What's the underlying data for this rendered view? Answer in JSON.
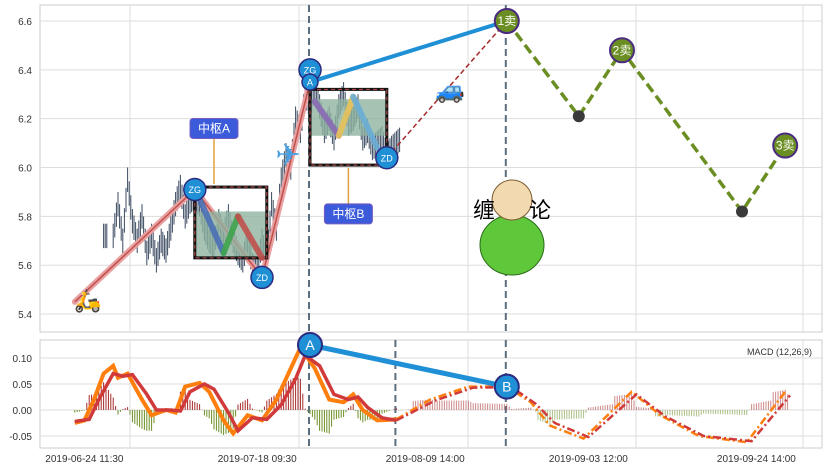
{
  "chart_data": [
    {
      "type": "line",
      "panel": "price",
      "ylim": [
        5.35,
        6.65
      ],
      "yticks": [
        5.4,
        5.6,
        5.8,
        6.0,
        6.2,
        6.4,
        6.6
      ],
      "grid": true,
      "price": [
        [
          7,
          5.72
        ],
        [
          9,
          5.85
        ],
        [
          10,
          5.7
        ],
        [
          11,
          5.95
        ],
        [
          12,
          5.78
        ],
        [
          13,
          5.7
        ],
        [
          14,
          5.8
        ],
        [
          15,
          5.65
        ],
        [
          16,
          5.72
        ],
        [
          17,
          5.62
        ],
        [
          18,
          5.7
        ],
        [
          19,
          5.66
        ],
        [
          20,
          5.75
        ],
        [
          21,
          5.85
        ],
        [
          22,
          5.92
        ],
        [
          23,
          5.8
        ],
        [
          24,
          5.86
        ],
        [
          25,
          5.88
        ],
        [
          26,
          5.85
        ],
        [
          27,
          5.75
        ],
        [
          28,
          5.7
        ],
        [
          29,
          5.68
        ],
        [
          30,
          5.78
        ],
        [
          31,
          5.72
        ],
        [
          32,
          5.8
        ],
        [
          33,
          5.7
        ],
        [
          34,
          5.65
        ],
        [
          35,
          5.62
        ],
        [
          36,
          5.7
        ],
        [
          37,
          5.6
        ],
        [
          38,
          5.58
        ],
        [
          39,
          5.7
        ],
        [
          40,
          5.62
        ],
        [
          41,
          5.85
        ],
        [
          42,
          5.75
        ],
        [
          43,
          5.95
        ],
        [
          44,
          6.05
        ],
        [
          45,
          6.0
        ],
        [
          46,
          6.2
        ],
        [
          47,
          6.15
        ],
        [
          48,
          6.3
        ],
        [
          49,
          6.25
        ],
        [
          50,
          6.33
        ],
        [
          51,
          6.25
        ],
        [
          52,
          6.15
        ],
        [
          53,
          6.2
        ],
        [
          54,
          6.12
        ],
        [
          55,
          6.25
        ],
        [
          56,
          6.3
        ],
        [
          57,
          6.18
        ],
        [
          58,
          6.2
        ],
        [
          59,
          6.25
        ],
        [
          60,
          6.12
        ],
        [
          61,
          6.15
        ],
        [
          62,
          6.08
        ],
        [
          63,
          6.1
        ],
        [
          64,
          6.12
        ],
        [
          65,
          6.05
        ],
        [
          66,
          6.08
        ],
        [
          67,
          6.1
        ],
        [
          68,
          6.12
        ]
      ],
      "strokes": [
        {
          "from": [
            1,
            5.45
          ],
          "to": [
            26,
            5.91
          ],
          "color": "#c0504d"
        },
        {
          "from": [
            26,
            5.91
          ],
          "to": [
            40,
            5.55
          ],
          "color": "#c0504d"
        },
        {
          "from": [
            40,
            5.55
          ],
          "to": [
            50,
            6.35
          ],
          "color": "#c0504d"
        }
      ],
      "pivots": [
        {
          "label": "中枢A",
          "zg": 5.92,
          "zd": 5.63,
          "shade": [
            5.63,
            5.82
          ],
          "from": 26,
          "to": 41,
          "tag": [
            30,
            6.16
          ],
          "segs": [
            {
              "a": [
                27,
                5.87
              ],
              "b": [
                32,
                5.65
              ],
              "c": "#4a6fb5"
            },
            {
              "a": [
                32,
                5.65
              ],
              "b": [
                35,
                5.8
              ],
              "c": "#3fa34d"
            },
            {
              "a": [
                35,
                5.8
              ],
              "b": [
                40,
                5.63
              ],
              "c": "#c0504d"
            }
          ]
        },
        {
          "label": "中枢B",
          "zg": 6.32,
          "zd": 6.01,
          "shade": [
            6.13,
            6.28
          ],
          "from": 50,
          "to": 66,
          "tag": [
            58,
            5.81
          ],
          "segs": [
            {
              "a": [
                51,
                6.27
              ],
              "b": [
                56,
                6.13
              ],
              "c": "#8a6bb5"
            },
            {
              "a": [
                56,
                6.13
              ],
              "b": [
                59,
                6.29
              ],
              "c": "#e8c25a"
            },
            {
              "a": [
                59,
                6.29
              ],
              "b": [
                64,
                6.08
              ],
              "c": "#6aaed6"
            }
          ]
        }
      ],
      "markers": [
        {
          "label": "ZG",
          "i": 26,
          "p": 5.91
        },
        {
          "label": "ZD",
          "i": 40,
          "p": 5.55
        },
        {
          "label": "ZG",
          "i": 50,
          "p": 6.4
        },
        {
          "label": "A",
          "i": 50,
          "p": 6.35
        },
        {
          "label": "ZD",
          "i": 66,
          "p": 6.04
        }
      ],
      "projection": [
        [
          66,
          6.04
        ],
        [
          91,
          6.6
        ]
      ],
      "trend_line": [
        [
          50,
          6.35
        ],
        [
          91,
          6.6
        ]
      ],
      "forecast": [
        [
          91,
          6.6
        ],
        [
          106,
          6.21
        ],
        [
          115,
          6.48
        ],
        [
          140,
          5.82
        ],
        [
          149,
          6.09
        ]
      ],
      "sell_points": [
        {
          "label": "1卖",
          "i": 91,
          "p": 6.6
        },
        {
          "label": "2卖",
          "i": 115,
          "p": 6.48
        },
        {
          "label": "3卖",
          "i": 149,
          "p": 6.09
        }
      ],
      "buy_dots": [
        [
          106,
          6.21
        ],
        [
          140,
          5.82
        ]
      ],
      "icons": [
        "scooter-icon",
        "airplane-icon",
        "car-icon",
        "monk-icon"
      ],
      "monk_text": [
        "缠",
        "论"
      ],
      "vlines": [
        50,
        91
      ]
    },
    {
      "type": "line",
      "panel": "macd",
      "title": "MACD (12,26,9)",
      "ylim": [
        -0.07,
        0.14
      ],
      "yticks": [
        -0.05,
        0.0,
        0.05,
        0.1
      ],
      "ytick_labels": [
        "-0.05",
        "0.00",
        "0.05",
        "0.10"
      ],
      "dif": [
        [
          1,
          -0.025
        ],
        [
          3,
          -0.02
        ],
        [
          5,
          0.02
        ],
        [
          7,
          0.07
        ],
        [
          9,
          0.085
        ],
        [
          10,
          0.062
        ],
        [
          12,
          0.07
        ],
        [
          15,
          0.02
        ],
        [
          17,
          -0.01
        ],
        [
          20,
          0.0
        ],
        [
          22,
          -0.005
        ],
        [
          24,
          0.045
        ],
        [
          27,
          0.052
        ],
        [
          29,
          0.035
        ],
        [
          32,
          -0.02
        ],
        [
          34,
          -0.045
        ],
        [
          37,
          -0.01
        ],
        [
          40,
          -0.02
        ],
        [
          43,
          0.02
        ],
        [
          46,
          0.08
        ],
        [
          48,
          0.12
        ],
        [
          51,
          0.08
        ],
        [
          54,
          0.02
        ],
        [
          57,
          0.015
        ],
        [
          59,
          0.03
        ],
        [
          61,
          0.0
        ],
        [
          64,
          -0.02
        ],
        [
          68,
          -0.018
        ]
      ],
      "dea": [
        [
          1,
          -0.022
        ],
        [
          4,
          -0.018
        ],
        [
          6,
          0.02
        ],
        [
          9,
          0.07
        ],
        [
          11,
          0.065
        ],
        [
          13,
          0.068
        ],
        [
          16,
          0.03
        ],
        [
          18,
          0.0
        ],
        [
          21,
          0.0
        ],
        [
          23,
          -0.002
        ],
        [
          25,
          0.035
        ],
        [
          28,
          0.05
        ],
        [
          30,
          0.04
        ],
        [
          33,
          -0.005
        ],
        [
          35,
          -0.04
        ],
        [
          38,
          -0.015
        ],
        [
          41,
          -0.018
        ],
        [
          44,
          0.01
        ],
        [
          47,
          0.06
        ],
        [
          49,
          0.105
        ],
        [
          52,
          0.085
        ],
        [
          55,
          0.03
        ],
        [
          58,
          0.02
        ],
        [
          60,
          0.025
        ],
        [
          62,
          0.005
        ],
        [
          65,
          -0.015
        ],
        [
          68,
          -0.02
        ]
      ],
      "dif_forecast": [
        [
          68,
          -0.018
        ],
        [
          75,
          0.02
        ],
        [
          83,
          0.045
        ],
        [
          91,
          0.045
        ],
        [
          96,
          0.015
        ],
        [
          100,
          -0.03
        ],
        [
          107,
          -0.055
        ],
        [
          117,
          0.035
        ],
        [
          123,
          -0.01
        ],
        [
          131,
          -0.05
        ],
        [
          141,
          -0.062
        ],
        [
          149,
          0.035
        ]
      ],
      "dea_forecast": [
        [
          68,
          -0.02
        ],
        [
          76,
          0.018
        ],
        [
          84,
          0.043
        ],
        [
          92,
          0.044
        ],
        [
          97,
          0.012
        ],
        [
          101,
          -0.025
        ],
        [
          108,
          -0.052
        ],
        [
          118,
          0.03
        ],
        [
          124,
          -0.012
        ],
        [
          132,
          -0.05
        ],
        [
          142,
          -0.06
        ],
        [
          150,
          0.028
        ]
      ],
      "divergence": [
        {
          "label": "A",
          "i": 50,
          "v": 0.125
        },
        {
          "label": "B",
          "i": 91,
          "v": 0.045
        }
      ],
      "vlines": [
        50,
        68,
        91
      ]
    }
  ],
  "xaxis": {
    "ticks": [
      {
        "i": 3,
        "label": "2019-06-24 11:30"
      },
      {
        "i": 39,
        "label": "2019-07-18 09:30"
      },
      {
        "i": 74,
        "label": "2019-08-09 14:00"
      },
      {
        "i": 108,
        "label": "2019-09-03 12:00"
      },
      {
        "i": 143,
        "label": "2019-09-24 14:00"
      }
    ]
  },
  "colors": {
    "dif": "#ff7f0e",
    "dea": "#d13a3a",
    "trend": "#1f8fd6",
    "forecast": "#6b8e23",
    "marker": "#1f8fd6",
    "hist_pos": "#a52a2a",
    "hist_neg": "#6b8e23",
    "box_fill": "#8fb3a0"
  }
}
